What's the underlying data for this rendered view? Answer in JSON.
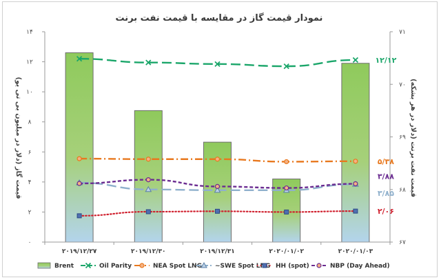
{
  "chart_data": {
    "type": "bar+line",
    "title": "نمودار قیمت گاز  در مقایسه با قیمت نفت برنت",
    "categories": [
      "۲۰۱۹/۱۲/۲۷",
      "۲۰۱۹/۱۲/۳۰",
      "۲۰۱۹/۱۲/۳۱",
      "۲۰۲۰/۰۱/۰۲",
      "۲۰۲۰/۰۱/۰۳"
    ],
    "left_axis": {
      "label": "قیمت گاز (دلار در میلیون بی تی یو)",
      "ylim": [
        0,
        14
      ],
      "ticks": [
        0,
        2,
        4,
        6,
        8,
        10,
        12,
        14
      ],
      "tick_labels": [
        "۰",
        "۲",
        "۴",
        "۶",
        "۸",
        "۱۰",
        "۱۲",
        "۱۴"
      ]
    },
    "right_axis": {
      "label": "قیمت نفت برنت (دلار در هر بشکه)",
      "ylim": [
        67,
        71
      ],
      "ticks": [
        67,
        68,
        69,
        70,
        71
      ],
      "tick_labels": [
        "۶۷",
        "۶۸",
        "۶۹",
        "۷۰",
        "۷۱"
      ]
    },
    "bars": {
      "name": "Brent",
      "axis": "right",
      "values": [
        70.6,
        69.5,
        68.9,
        68.2,
        70.4
      ],
      "color_top": "#8fca5c",
      "color_bottom": "#b3d4ec"
    },
    "series": [
      {
        "name": "Oil Parity",
        "axis": "left",
        "values": [
          12.2,
          11.95,
          11.85,
          11.7,
          12.12
        ],
        "color": "#1ba66a",
        "dash": "long",
        "marker": "x",
        "end_label": "۱۲/۱۲"
      },
      {
        "name": "NEA Spot LNG",
        "axis": "left",
        "values": [
          5.55,
          5.52,
          5.52,
          5.35,
          5.38
        ],
        "color": "#e8781e",
        "dash": "dashdot",
        "marker": "circle",
        "end_label": "۵/۳۸"
      },
      {
        "name": "~SWE Spot LNG",
        "axis": "left",
        "values": [
          3.95,
          3.5,
          3.45,
          3.45,
          3.85
        ],
        "color": "#8fb0cc",
        "dash": "long",
        "marker": "triangle",
        "end_label": "۳/۸۵"
      },
      {
        "name": "HH (spot)",
        "axis": "left",
        "values": [
          1.75,
          2.02,
          2.05,
          2.0,
          2.06
        ],
        "color": "#d0202e",
        "dash": "dot",
        "marker": "square",
        "end_label": "۲/۰۶"
      },
      {
        "name": "NBP (Day Ahead)",
        "axis": "left",
        "values": [
          3.9,
          4.15,
          3.7,
          3.6,
          3.88
        ],
        "color": "#6b2c91",
        "dash": "short",
        "marker": "circle",
        "end_label": "۳/۸۸"
      }
    ],
    "legend_position": "bottom",
    "grid": false
  }
}
